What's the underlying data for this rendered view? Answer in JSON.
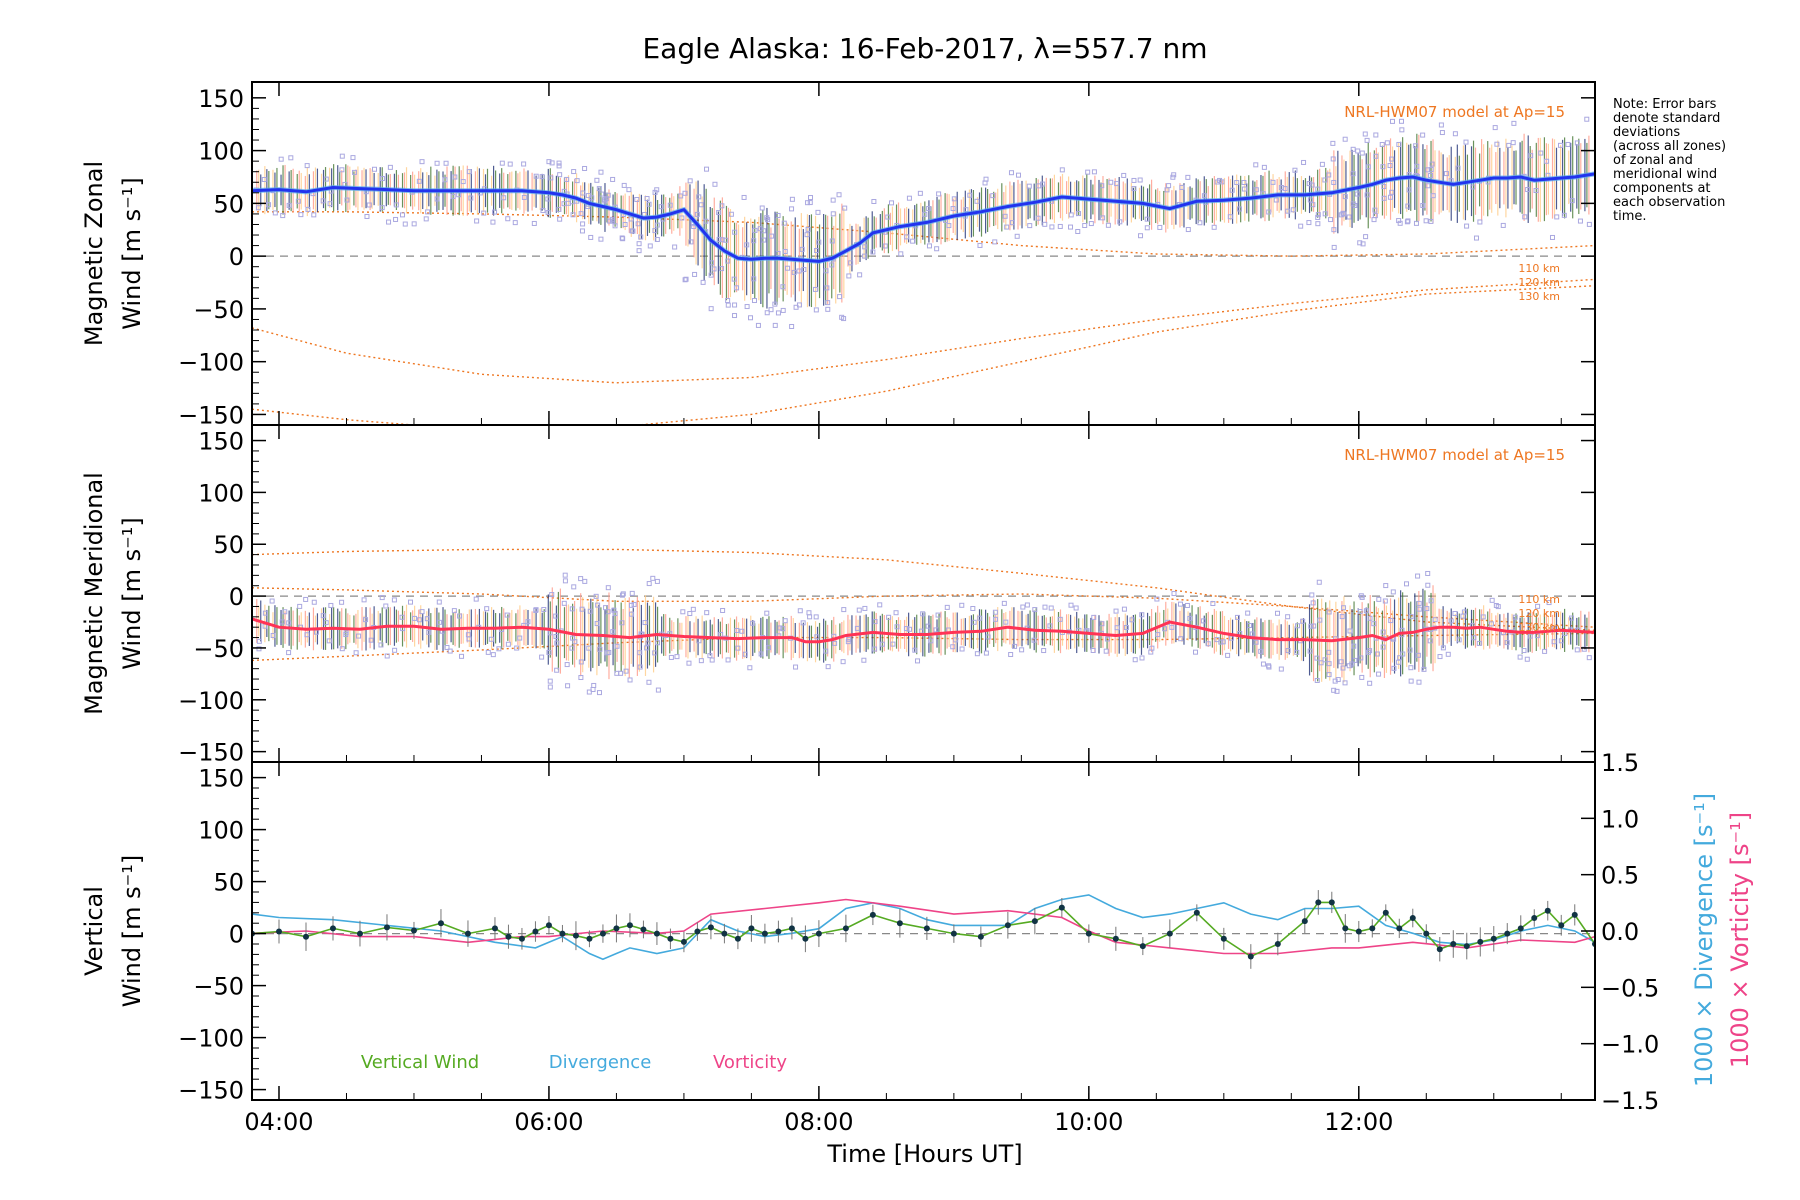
{
  "colors": {
    "axis": "#000000",
    "zonal": "#2233ee",
    "zonal_light": "#55aaee",
    "meridional": "#ff3355",
    "model": "#ee7722",
    "scatter": "#aaa8e0",
    "vertical": "#55aa22",
    "divergence": "#44aadd",
    "vorticity": "#ee4488",
    "errbar_a": "#223377",
    "errbar_b": "#447733",
    "errbar_c": "#ff9988",
    "errbar_d": "#ffcc88",
    "zero": "#888888"
  },
  "chart_data": {
    "type": "line",
    "title": "Eagle Alaska: 16-Feb-2017, λ=557.7 nm",
    "xlabel": "Time [Hours UT]",
    "xlim": [
      3.8,
      13.75
    ],
    "x_ticks": [
      4,
      6,
      8,
      10,
      12
    ],
    "x_tick_labels": [
      "04:00",
      "06:00",
      "08:00",
      "10:00",
      "12:00"
    ],
    "y_ticks": [
      -150,
      -100,
      -50,
      0,
      50,
      100,
      150
    ],
    "y_tick_labels": [
      "−150",
      "−100",
      "−50",
      "0",
      "50",
      "100",
      "150"
    ],
    "note": [
      "Note: Error bars",
      "denote standard",
      "deviations",
      "(across all zones)",
      "of zonal and",
      "meridional wind",
      "components at",
      "each observation",
      "time."
    ],
    "panels": [
      {
        "ylabel_line1": "Magnetic Zonal",
        "ylabel_line2": "Wind [m s⁻¹]",
        "ylim": [
          -160,
          165
        ],
        "model_label": "NRL-HWM07 model at Ap=15",
        "height_labels": [
          "110 km",
          "120 km",
          "130 km"
        ],
        "series": [
          {
            "x": [
              3.8,
              4.0,
              4.2,
              4.4,
              4.6,
              4.8,
              5.0,
              5.2,
              5.4,
              5.6,
              5.8,
              6.0,
              6.1,
              6.2,
              6.3,
              6.4,
              6.5,
              6.6,
              6.7,
              6.8,
              6.9,
              7.0,
              7.1,
              7.2,
              7.3,
              7.4,
              7.5,
              7.6,
              7.7,
              7.8,
              7.9,
              8.0,
              8.1,
              8.2,
              8.3,
              8.4,
              8.6,
              8.8,
              9.0,
              9.2,
              9.4,
              9.6,
              9.8,
              10.0,
              10.2,
              10.4,
              10.6,
              10.8,
              11.0,
              11.2,
              11.4,
              11.6,
              11.8,
              12.0,
              12.1,
              12.2,
              12.3,
              12.4,
              12.5,
              12.6,
              12.7,
              12.8,
              12.9,
              13.0,
              13.1,
              13.2,
              13.3,
              13.4,
              13.5,
              13.6,
              13.75
            ],
            "values": [
              62,
              63,
              61,
              65,
              64,
              63,
              62,
              62,
              62,
              62,
              62,
              60,
              58,
              55,
              50,
              47,
              44,
              40,
              36,
              37,
              40,
              44,
              30,
              15,
              5,
              -2,
              -3,
              -2,
              -2,
              -3,
              -4,
              -5,
              -2,
              5,
              12,
              22,
              28,
              32,
              38,
              42,
              47,
              51,
              56,
              54,
              52,
              50,
              45,
              52,
              53,
              55,
              58,
              58,
              60,
              65,
              68,
              72,
              74,
              75,
              72,
              70,
              68,
              70,
              72,
              74,
              74,
              75,
              72,
              73,
              74,
              75,
              78
            ]
          }
        ],
        "model_curves": [
          {
            "x": [
              3.8,
              4.5,
              5.5,
              6.5,
              7.5,
              8.5,
              9.5,
              10.5,
              11.5,
              12.5,
              13.75
            ],
            "values": [
              42,
              42,
              40,
              37,
              32,
              22,
              10,
              2,
              0,
              2,
              10
            ]
          },
          {
            "x": [
              3.8,
              4.5,
              5.5,
              6.5,
              7.5,
              8.5,
              9.5,
              10.5,
              11.5,
              12.5,
              13.75
            ],
            "values": [
              -68,
              -92,
              -112,
              -120,
              -115,
              -98,
              -78,
              -60,
              -45,
              -32,
              -22
            ]
          },
          {
            "x": [
              3.8,
              4.5,
              5.5,
              6.5,
              7.5,
              8.5,
              9.5,
              10.5,
              11.5,
              12.5,
              13.75
            ],
            "values": [
              -145,
              -155,
              -165,
              -162,
              -150,
              -128,
              -100,
              -72,
              -52,
              -36,
              -28
            ]
          }
        ]
      },
      {
        "ylabel_line1": "Magnetic Meridional",
        "ylabel_line2": "Wind [m s⁻¹]",
        "ylim": [
          -160,
          165
        ],
        "model_label": "NRL-HWM07 model at Ap=15",
        "height_labels": [
          "110 km",
          "120 km",
          "130 km"
        ],
        "series": [
          {
            "x": [
              3.8,
              4.0,
              4.2,
              4.4,
              4.6,
              4.8,
              5.0,
              5.2,
              5.4,
              5.6,
              5.8,
              6.0,
              6.2,
              6.4,
              6.6,
              6.8,
              7.0,
              7.2,
              7.4,
              7.6,
              7.8,
              7.9,
              8.0,
              8.1,
              8.2,
              8.4,
              8.6,
              8.8,
              9.0,
              9.2,
              9.4,
              9.6,
              9.8,
              10.0,
              10.2,
              10.4,
              10.6,
              10.8,
              11.0,
              11.2,
              11.4,
              11.6,
              11.8,
              12.0,
              12.1,
              12.2,
              12.3,
              12.4,
              12.5,
              12.6,
              12.7,
              12.8,
              12.9,
              13.0,
              13.1,
              13.2,
              13.3,
              13.4,
              13.5,
              13.6,
              13.75
            ],
            "values": [
              -22,
              -30,
              -32,
              -31,
              -32,
              -29,
              -29,
              -32,
              -31,
              -31,
              -30,
              -32,
              -37,
              -38,
              -40,
              -37,
              -39,
              -40,
              -41,
              -40,
              -40,
              -44,
              -44,
              -42,
              -38,
              -35,
              -37,
              -37,
              -35,
              -34,
              -30,
              -33,
              -34,
              -36,
              -38,
              -36,
              -25,
              -30,
              -36,
              -40,
              -42,
              -42,
              -43,
              -40,
              -38,
              -42,
              -36,
              -35,
              -32,
              -30,
              -30,
              -31,
              -30,
              -32,
              -34,
              -35,
              -35,
              -34,
              -33,
              -34,
              -35
            ]
          }
        ],
        "model_curves": [
          {
            "x": [
              3.8,
              4.5,
              5.5,
              6.5,
              7.5,
              8.5,
              9.5,
              10.5,
              11.5,
              12.5,
              13.75
            ],
            "values": [
              40,
              43,
              45,
              45,
              42,
              35,
              22,
              8,
              -10,
              -25,
              -33
            ]
          },
          {
            "x": [
              3.8,
              4.5,
              5.5,
              6.5,
              7.5,
              8.5,
              9.5,
              10.5,
              11.5,
              12.5,
              13.75
            ],
            "values": [
              8,
              6,
              2,
              -5,
              -5,
              0,
              2,
              -2,
              -10,
              -20,
              -30
            ]
          },
          {
            "x": [
              3.8,
              4.5,
              5.5,
              6.5,
              7.5,
              8.5,
              9.5,
              10.5,
              11.5,
              12.5,
              13.75
            ],
            "values": [
              -62,
              -58,
              -52,
              -45,
              -40,
              -40,
              -42,
              -42,
              -40,
              -38,
              -36
            ]
          }
        ]
      },
      {
        "ylabel_line1": "Vertical",
        "ylabel_line2": "Wind [m s⁻¹]",
        "ylim": [
          -160,
          165
        ],
        "y2lim": [
          -1.5,
          1.5
        ],
        "y2_ticks": [
          -1.5,
          -1.0,
          -0.5,
          0.0,
          0.5,
          1.0,
          1.5
        ],
        "y2_tick_labels": [
          "−1.5",
          "−1.0",
          "−0.5",
          "0.0",
          "0.5",
          "1.0",
          "1.5"
        ],
        "y2label_1": "1000 × Divergence [s⁻¹]",
        "y2label_2": "1000 × Vorticity [s⁻¹]",
        "legend": [
          "Vertical Wind",
          "Divergence",
          "Vorticity"
        ],
        "vertical": {
          "x": [
            3.8,
            4.0,
            4.2,
            4.4,
            4.6,
            4.8,
            5.0,
            5.2,
            5.4,
            5.6,
            5.7,
            5.8,
            5.9,
            6.0,
            6.1,
            6.2,
            6.3,
            6.4,
            6.5,
            6.6,
            6.7,
            6.8,
            6.9,
            7.0,
            7.1,
            7.2,
            7.3,
            7.4,
            7.5,
            7.6,
            7.7,
            7.8,
            7.9,
            8.0,
            8.2,
            8.4,
            8.6,
            8.8,
            9.0,
            9.2,
            9.4,
            9.6,
            9.8,
            10.0,
            10.2,
            10.4,
            10.6,
            10.8,
            11.0,
            11.2,
            11.4,
            11.6,
            11.7,
            11.8,
            11.9,
            12.0,
            12.1,
            12.2,
            12.3,
            12.4,
            12.5,
            12.6,
            12.7,
            12.8,
            12.9,
            13.0,
            13.1,
            13.2,
            13.3,
            13.4,
            13.5,
            13.6,
            13.75
          ],
          "values": [
            0,
            2,
            -3,
            5,
            0,
            6,
            3,
            10,
            0,
            5,
            -3,
            -5,
            2,
            8,
            0,
            -2,
            -5,
            0,
            5,
            8,
            4,
            0,
            -5,
            -8,
            2,
            6,
            0,
            -5,
            5,
            0,
            2,
            5,
            -5,
            0,
            5,
            18,
            10,
            5,
            0,
            -3,
            8,
            12,
            25,
            0,
            -5,
            -12,
            0,
            20,
            -5,
            -22,
            -10,
            12,
            30,
            30,
            5,
            2,
            5,
            20,
            5,
            15,
            0,
            -15,
            -10,
            -12,
            -8,
            -5,
            0,
            5,
            15,
            22,
            8,
            18,
            -10
          ]
        },
        "divergence": {
          "x": [
            3.8,
            4.0,
            4.4,
            4.8,
            5.2,
            5.6,
            5.9,
            6.0,
            6.1,
            6.3,
            6.4,
            6.5,
            6.6,
            6.8,
            7.0,
            7.2,
            7.4,
            7.6,
            7.8,
            8.0,
            8.2,
            8.4,
            8.6,
            8.8,
            9.0,
            9.4,
            9.6,
            9.8,
            10.0,
            10.2,
            10.4,
            10.6,
            10.8,
            11.0,
            11.2,
            11.4,
            11.6,
            11.8,
            12.0,
            12.2,
            12.4,
            12.6,
            12.8,
            13.0,
            13.2,
            13.4,
            13.6,
            13.75
          ],
          "divergence_values": [
            0.15,
            0.12,
            0.1,
            0.05,
            0.0,
            -0.1,
            -0.15,
            -0.1,
            -0.05,
            -0.2,
            -0.25,
            -0.2,
            -0.15,
            -0.2,
            -0.15,
            0.1,
            0.0,
            -0.05,
            -0.02,
            0.02,
            0.2,
            0.25,
            0.2,
            0.1,
            0.05,
            0.05,
            0.2,
            0.28,
            0.32,
            0.2,
            0.12,
            0.15,
            0.2,
            0.25,
            0.15,
            0.1,
            0.2,
            0.2,
            0.22,
            0.05,
            -0.02,
            -0.1,
            -0.12,
            -0.08,
            0.0,
            0.05,
            0.0,
            -0.1
          ]
        },
        "vorticity": {
          "x": [
            3.8,
            4.2,
            4.6,
            5.0,
            5.4,
            5.8,
            6.0,
            6.4,
            6.8,
            7.0,
            7.2,
            7.6,
            8.0,
            8.2,
            8.6,
            9.0,
            9.4,
            9.8,
            10.0,
            10.2,
            10.6,
            11.0,
            11.4,
            11.8,
            12.0,
            12.4,
            12.8,
            13.2,
            13.6,
            13.75
          ],
          "vorticity_values": [
            -0.02,
            0.0,
            -0.05,
            -0.05,
            -0.1,
            -0.05,
            -0.05,
            0.0,
            -0.02,
            0.0,
            0.15,
            0.2,
            0.25,
            0.28,
            0.22,
            0.15,
            0.18,
            0.12,
            0.0,
            -0.1,
            -0.15,
            -0.2,
            -0.2,
            -0.15,
            -0.15,
            -0.1,
            -0.15,
            -0.08,
            -0.1,
            -0.05
          ]
        }
      }
    ]
  }
}
